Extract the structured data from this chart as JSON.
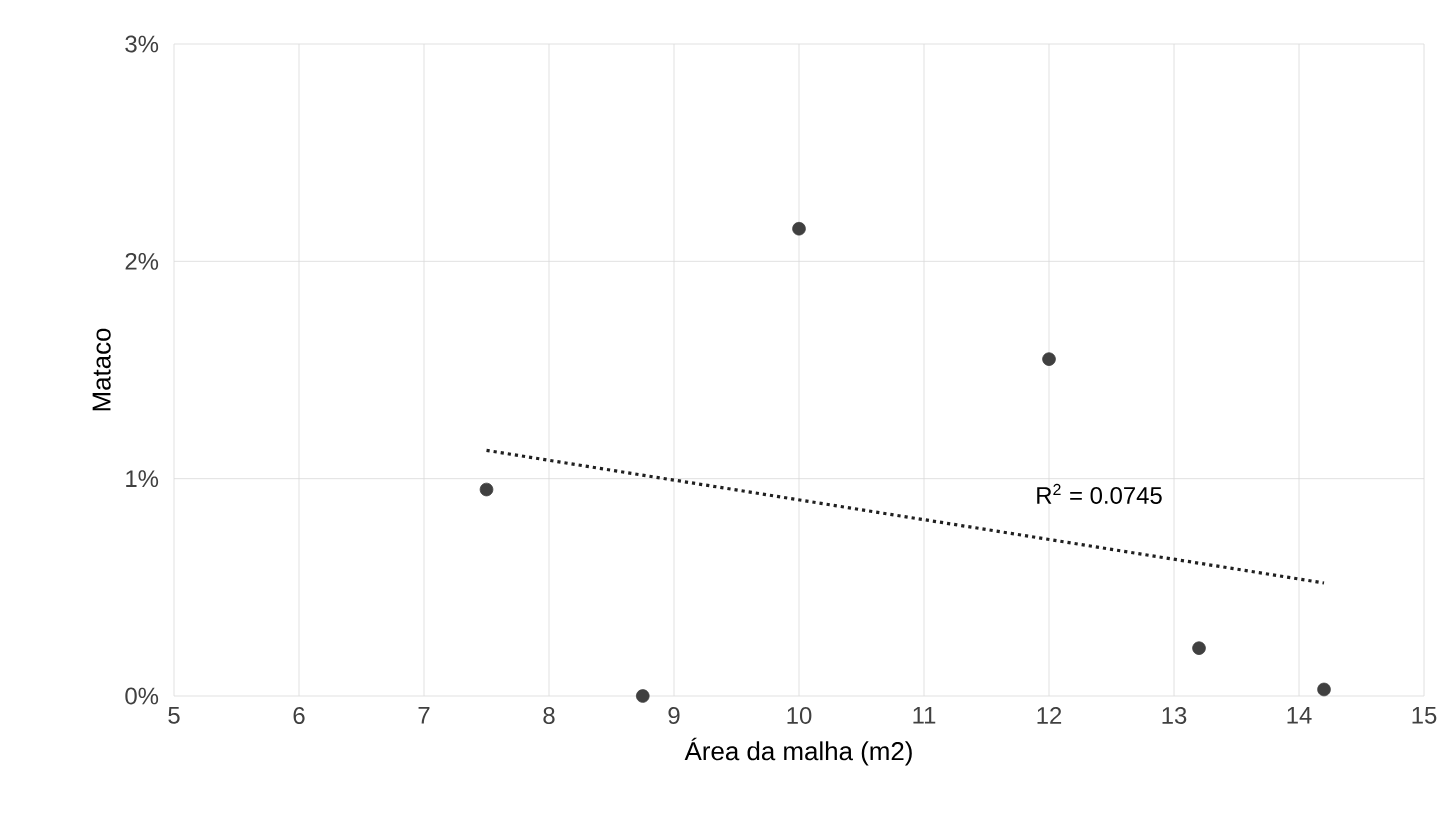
{
  "chart_data": {
    "type": "scatter",
    "xlabel": "Área da malha (m2)",
    "ylabel": "Mataco",
    "xlim": [
      5,
      15
    ],
    "xticks": [
      5,
      6,
      7,
      8,
      9,
      10,
      11,
      12,
      13,
      14,
      15
    ],
    "ylim": [
      0,
      3
    ],
    "yticks": [
      {
        "value": 0,
        "label": "0%"
      },
      {
        "value": 1,
        "label": "1%"
      },
      {
        "value": 2,
        "label": "2%"
      },
      {
        "value": 3,
        "label": "3%"
      }
    ],
    "grid": true,
    "series": [
      {
        "color": "#404040",
        "marker": "circle",
        "x": [
          7.5,
          8.75,
          10,
          12,
          13.2,
          14.2
        ],
        "values": [
          0.95,
          0,
          2.15,
          1.55,
          0.22,
          0.03
        ]
      },
      {
        "type": "line",
        "color": "#202020",
        "marker": "none",
        "line_style": "dotted",
        "x": [
          7.5,
          14.2
        ],
        "values": [
          1.13,
          0.52
        ]
      }
    ],
    "annotations": [
      "R$^{2}$ = 0.0745"
    ]
  }
}
